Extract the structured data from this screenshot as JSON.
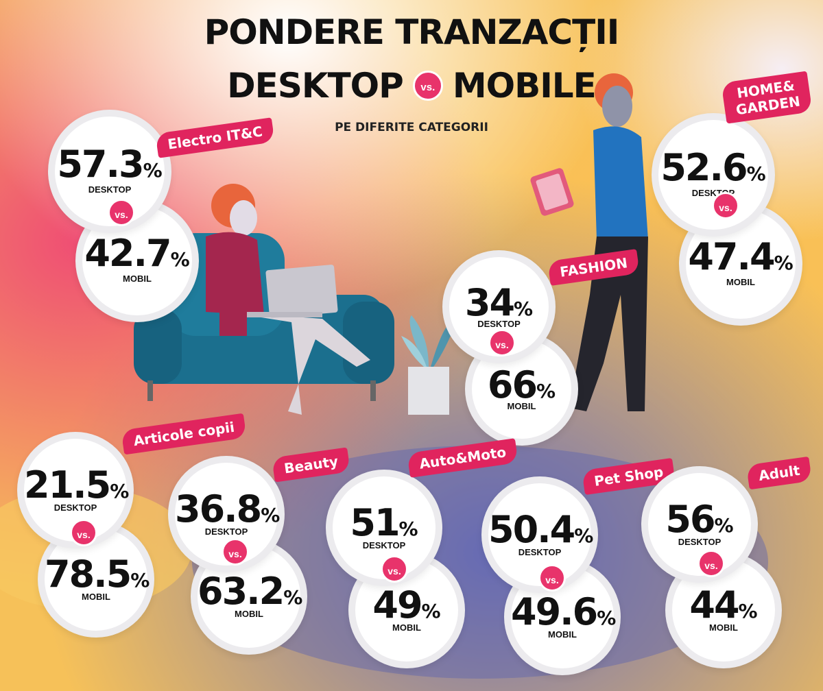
{
  "title_line1": "PONDERE TRANZACȚII",
  "title_desktop": "DESKTOP",
  "title_vs": "vs.",
  "title_mobile": "MOBILE",
  "subtitle": "PE DIFERITE CATEGORII",
  "chart_data": {
    "type": "table",
    "title": "PONDERE TRANZACȚII DESKTOP vs. MOBILE",
    "subtitle": "PE DIFERITE CATEGORII",
    "columns": [
      "DESKTOP",
      "MOBIL"
    ],
    "vs_label": "vs.",
    "percent_sign": "%",
    "categories": [
      {
        "name": "Electro IT&C",
        "desktop": "57.3",
        "mobile": "42.7"
      },
      {
        "name": "HOME&\nGARDEN",
        "desktop": "52.6",
        "mobile": "47.4"
      },
      {
        "name": "FASHION",
        "desktop": "34",
        "mobile": "66"
      },
      {
        "name": "Articole copii",
        "desktop": "21.5",
        "mobile": "78.5"
      },
      {
        "name": "Beauty",
        "desktop": "36.8",
        "mobile": "63.2"
      },
      {
        "name": "Auto&Moto",
        "desktop": "51",
        "mobile": "49"
      },
      {
        "name": "Pet Shop",
        "desktop": "50.4",
        "mobile": "49.6"
      },
      {
        "name": "Adult",
        "desktop": "56",
        "mobile": "44"
      }
    ]
  },
  "colors": {
    "accent": "#e0245e",
    "text": "#111111",
    "circle_ring": "#ecebee"
  }
}
